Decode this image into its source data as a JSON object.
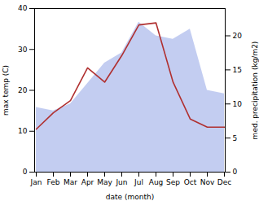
{
  "chart_data": {
    "type": "line",
    "xlabel": "date (month)",
    "ylabel": "max temp (C)",
    "y2label": "med. precipitation (kg/m2)",
    "categories": [
      "Jan",
      "Feb",
      "Mar",
      "Apr",
      "May",
      "Jun",
      "Jul",
      "Aug",
      "Sep",
      "Oct",
      "Nov",
      "Dec"
    ],
    "series": [
      {
        "type": "area",
        "axis": "y2",
        "color": "#b8c4ee",
        "values": [
          9.5,
          9.0,
          10.0,
          13.0,
          16.0,
          17.5,
          22.0,
          20.0,
          19.5,
          21.0,
          12.0,
          11.5
        ]
      },
      {
        "type": "line",
        "color": "#b03030",
        "values": [
          10.5,
          14.5,
          17.5,
          25.5,
          22.0,
          28.5,
          36.0,
          36.5,
          22.0,
          13.0,
          11.0,
          11.0
        ]
      }
    ],
    "ylim": [
      0,
      40
    ],
    "yticks": [
      0,
      10,
      20,
      30,
      40
    ],
    "y2lim": [
      0,
      24
    ],
    "y2ticks": [
      0,
      5,
      10,
      15,
      20
    ],
    "grid": false
  }
}
